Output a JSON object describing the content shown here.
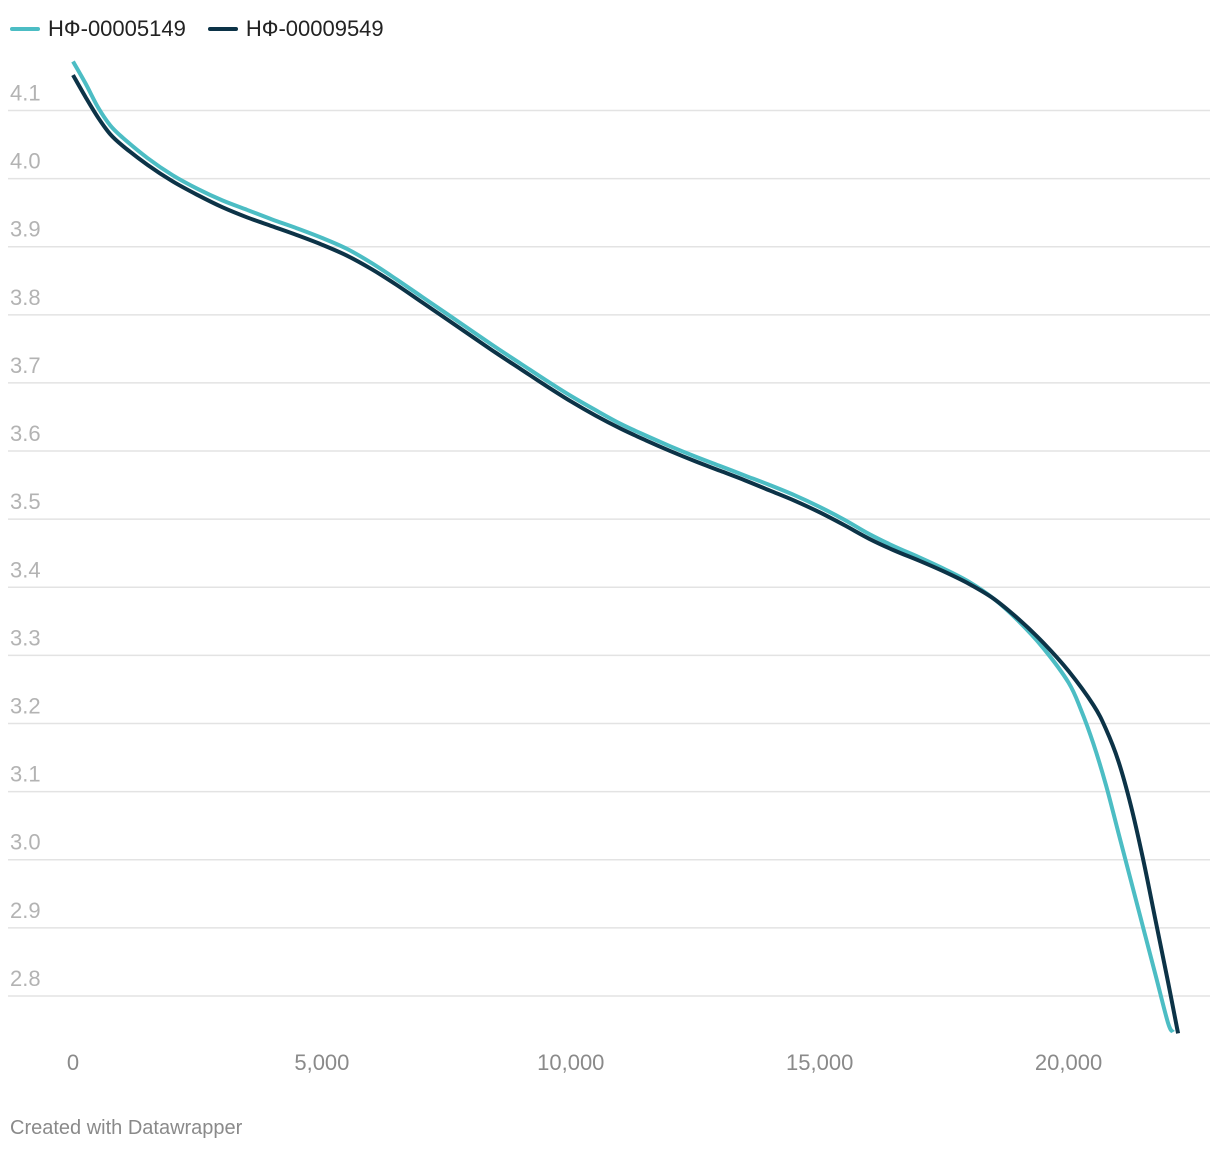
{
  "legend": [
    {
      "label": "НФ-00005149",
      "color": "#4cbdc4"
    },
    {
      "label": "НФ-00009549",
      "color": "#0c3347"
    }
  ],
  "footer": {
    "credit": "Created with Datawrapper"
  },
  "chart_data": {
    "type": "line",
    "xlim": [
      0,
      22500
    ],
    "ylim": [
      2.75,
      4.18
    ],
    "y_ticks": [
      "2.8",
      "2.9",
      "3.0",
      "3.1",
      "3.2",
      "3.3",
      "3.4",
      "3.5",
      "3.6",
      "3.7",
      "3.8",
      "3.9",
      "4.0",
      "4.1"
    ],
    "x_ticks": [
      "0",
      "5,000",
      "10,000",
      "15,000",
      "20,000"
    ],
    "x_tick_values": [
      0,
      5000,
      10000,
      15000,
      20000
    ],
    "grid": true,
    "legend_position": "top-left",
    "series": [
      {
        "name": "НФ-00005149",
        "color": "#4cbdc4",
        "points": [
          [
            0,
            4.172
          ],
          [
            250,
            4.14
          ],
          [
            500,
            4.105
          ],
          [
            750,
            4.078
          ],
          [
            1000,
            4.06
          ],
          [
            1500,
            4.03
          ],
          [
            2000,
            4.005
          ],
          [
            2500,
            3.985
          ],
          [
            3000,
            3.968
          ],
          [
            3500,
            3.954
          ],
          [
            4000,
            3.94
          ],
          [
            4500,
            3.927
          ],
          [
            5000,
            3.913
          ],
          [
            5500,
            3.897
          ],
          [
            6000,
            3.876
          ],
          [
            6500,
            3.852
          ],
          [
            7000,
            3.827
          ],
          [
            7500,
            3.802
          ],
          [
            8000,
            3.777
          ],
          [
            8500,
            3.752
          ],
          [
            9000,
            3.728
          ],
          [
            9500,
            3.704
          ],
          [
            10000,
            3.681
          ],
          [
            10500,
            3.66
          ],
          [
            11000,
            3.64
          ],
          [
            11500,
            3.623
          ],
          [
            12000,
            3.607
          ],
          [
            12500,
            3.592
          ],
          [
            13000,
            3.578
          ],
          [
            13500,
            3.564
          ],
          [
            14000,
            3.55
          ],
          [
            14500,
            3.535
          ],
          [
            15000,
            3.518
          ],
          [
            15500,
            3.499
          ],
          [
            16000,
            3.478
          ],
          [
            16500,
            3.46
          ],
          [
            17000,
            3.444
          ],
          [
            17500,
            3.427
          ],
          [
            18000,
            3.408
          ],
          [
            18500,
            3.383
          ],
          [
            19000,
            3.35
          ],
          [
            19500,
            3.31
          ],
          [
            20000,
            3.26
          ],
          [
            20250,
            3.22
          ],
          [
            20500,
            3.17
          ],
          [
            20750,
            3.11
          ],
          [
            21000,
            3.04
          ],
          [
            21250,
            2.97
          ],
          [
            21500,
            2.9
          ],
          [
            21750,
            2.83
          ],
          [
            22000,
            2.76
          ],
          [
            22100,
            2.747
          ]
        ]
      },
      {
        "name": "НФ-00009549",
        "color": "#0c3347",
        "points": [
          [
            0,
            4.152
          ],
          [
            250,
            4.12
          ],
          [
            500,
            4.09
          ],
          [
            750,
            4.065
          ],
          [
            1000,
            4.048
          ],
          [
            1500,
            4.02
          ],
          [
            2000,
            3.996
          ],
          [
            2500,
            3.976
          ],
          [
            3000,
            3.958
          ],
          [
            3500,
            3.943
          ],
          [
            4000,
            3.93
          ],
          [
            4500,
            3.917
          ],
          [
            5000,
            3.903
          ],
          [
            5500,
            3.887
          ],
          [
            6000,
            3.867
          ],
          [
            6500,
            3.844
          ],
          [
            7000,
            3.819
          ],
          [
            7500,
            3.794
          ],
          [
            8000,
            3.769
          ],
          [
            8500,
            3.744
          ],
          [
            9000,
            3.72
          ],
          [
            9500,
            3.696
          ],
          [
            10000,
            3.673
          ],
          [
            10500,
            3.652
          ],
          [
            11000,
            3.633
          ],
          [
            11500,
            3.616
          ],
          [
            12000,
            3.6
          ],
          [
            12500,
            3.585
          ],
          [
            13000,
            3.571
          ],
          [
            13500,
            3.557
          ],
          [
            14000,
            3.542
          ],
          [
            14500,
            3.527
          ],
          [
            15000,
            3.51
          ],
          [
            15500,
            3.491
          ],
          [
            16000,
            3.471
          ],
          [
            16500,
            3.454
          ],
          [
            17000,
            3.439
          ],
          [
            17500,
            3.423
          ],
          [
            18000,
            3.405
          ],
          [
            18500,
            3.383
          ],
          [
            19000,
            3.353
          ],
          [
            19500,
            3.318
          ],
          [
            20000,
            3.277
          ],
          [
            20500,
            3.227
          ],
          [
            20750,
            3.192
          ],
          [
            21000,
            3.145
          ],
          [
            21250,
            3.08
          ],
          [
            21500,
            3.0
          ],
          [
            21750,
            2.91
          ],
          [
            22000,
            2.82
          ],
          [
            22200,
            2.745
          ]
        ]
      }
    ]
  }
}
